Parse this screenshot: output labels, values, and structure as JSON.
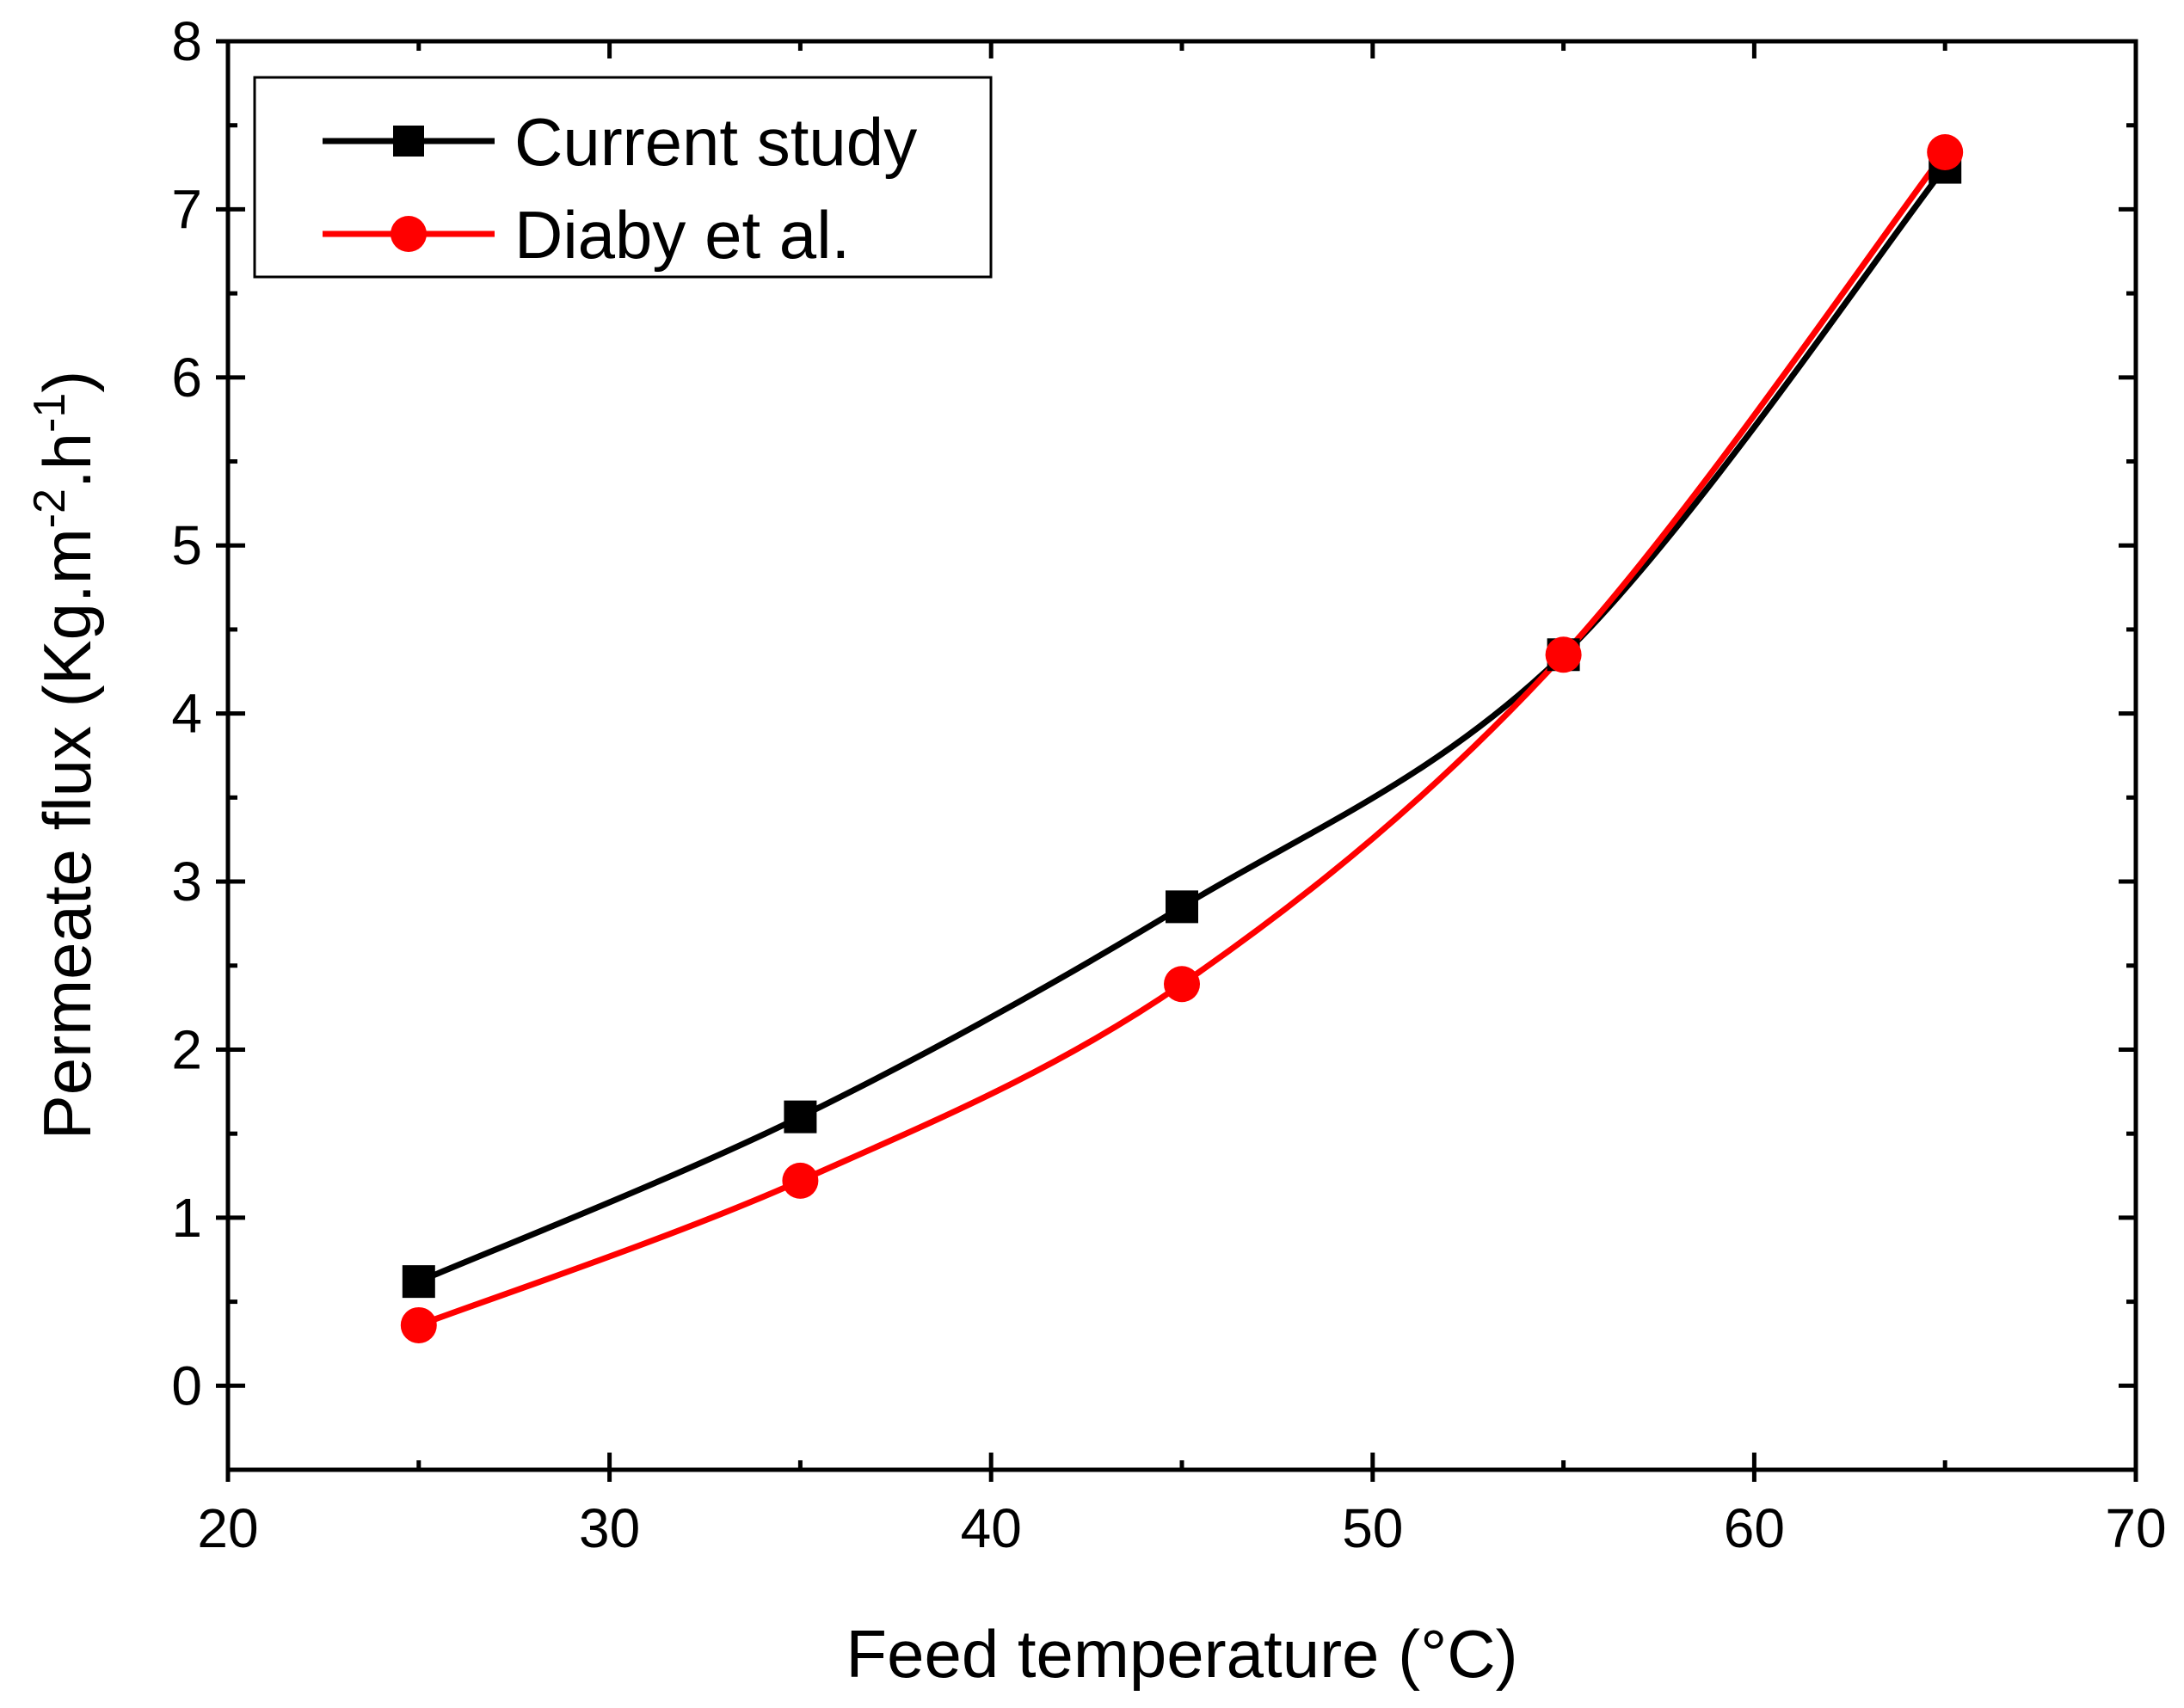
{
  "chart_data": {
    "type": "line",
    "title": "",
    "xlabel": "Feed temperature (°C)",
    "ylabel": {
      "prefix": "Permeate flux (Kg.m",
      "sup1": "-2",
      "mid": ".h",
      "sup2": "-1",
      "suffix": ")"
    },
    "xlim": [
      20,
      70
    ],
    "ylim": [
      -0.5,
      8
    ],
    "xticks": [
      20,
      30,
      40,
      50,
      60,
      70
    ],
    "yticks": [
      0,
      1,
      2,
      3,
      4,
      5,
      6,
      7,
      8
    ],
    "grid": false,
    "legend_position": "top-left",
    "x": [
      25,
      35,
      45,
      55,
      65
    ],
    "series": [
      {
        "name": "Current study",
        "marker": "square",
        "color": "#000000",
        "values": [
          0.62,
          1.6,
          2.85,
          4.35,
          7.25
        ]
      },
      {
        "name": "Diaby et al.",
        "marker": "circle",
        "color": "#ff0000",
        "values": [
          0.36,
          1.22,
          2.39,
          4.35,
          7.34
        ]
      }
    ]
  }
}
